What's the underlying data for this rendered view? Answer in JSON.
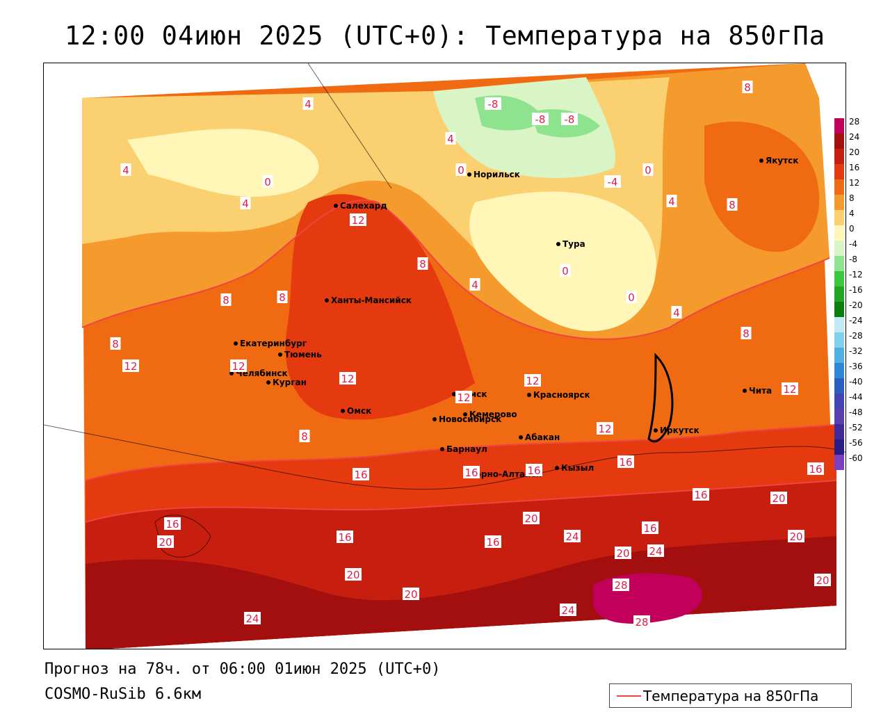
{
  "header": {
    "title": "12:00 04июн 2025 (UTC+0): Температура на 850гПа"
  },
  "footer": {
    "forecast_line": "Прогноз на 78ч. от 06:00 01июн 2025 (UTC+0)",
    "model_line": "COSMO-RuSib 6.6км"
  },
  "legend": {
    "series_label": "Температура на 850гПа",
    "line_color": "#ef4444"
  },
  "color_scale": {
    "ticks": [
      "28",
      "24",
      "20",
      "16",
      "12",
      "8",
      "4",
      "0",
      "-4",
      "-8",
      "-12",
      "-16",
      "-20",
      "-24",
      "-28",
      "-32",
      "-36",
      "-40",
      "-44",
      "-48",
      "-52",
      "-56",
      "-60"
    ],
    "colors": [
      "#c2005c",
      "#a30f0f",
      "#c81e0f",
      "#e5390f",
      "#f06a12",
      "#f59a2c",
      "#fbd070",
      "#fff6b8",
      "#d9f5c6",
      "#8ee38e",
      "#3cc83c",
      "#22a522",
      "#0b7f0b",
      "#bfe9f5",
      "#80d0ee",
      "#4fb0e6",
      "#2d86d6",
      "#2a5ec0",
      "#4045b3",
      "#5a3fb0",
      "#3f2a9a",
      "#2a1c85",
      "#7a3fc2"
    ]
  },
  "cities": [
    {
      "name": "Салехард"
    },
    {
      "name": "Норильск"
    },
    {
      "name": "Якутск"
    },
    {
      "name": "Тура"
    },
    {
      "name": "Ханты-Мансийск"
    },
    {
      "name": "Екатеринбург"
    },
    {
      "name": "Тюмень"
    },
    {
      "name": "Челябинск"
    },
    {
      "name": "Курган"
    },
    {
      "name": "Омск"
    },
    {
      "name": "Новосибирск"
    },
    {
      "name": "Томск"
    },
    {
      "name": "Кемерово"
    },
    {
      "name": "Красноярск"
    },
    {
      "name": "Барнаул"
    },
    {
      "name": "Абакан"
    },
    {
      "name": "Горно-Алтайск"
    },
    {
      "name": "Кызыл"
    },
    {
      "name": "Иркутск"
    },
    {
      "name": "Чита"
    }
  ],
  "isotherm_labels": [
    "-8",
    "-8",
    "-8",
    "-4",
    "0",
    "0",
    "0",
    "0",
    "0",
    "4",
    "4",
    "4",
    "4",
    "4",
    "4",
    "4",
    "8",
    "8",
    "8",
    "8",
    "8",
    "8",
    "8",
    "8",
    "12",
    "12",
    "12",
    "12",
    "12",
    "12",
    "12",
    "12",
    "16",
    "16",
    "16",
    "16",
    "16",
    "16",
    "16",
    "16",
    "16",
    "16",
    "20",
    "20",
    "20",
    "20",
    "20",
    "20",
    "20",
    "20",
    "24",
    "24",
    "24",
    "24",
    "28",
    "28"
  ]
}
